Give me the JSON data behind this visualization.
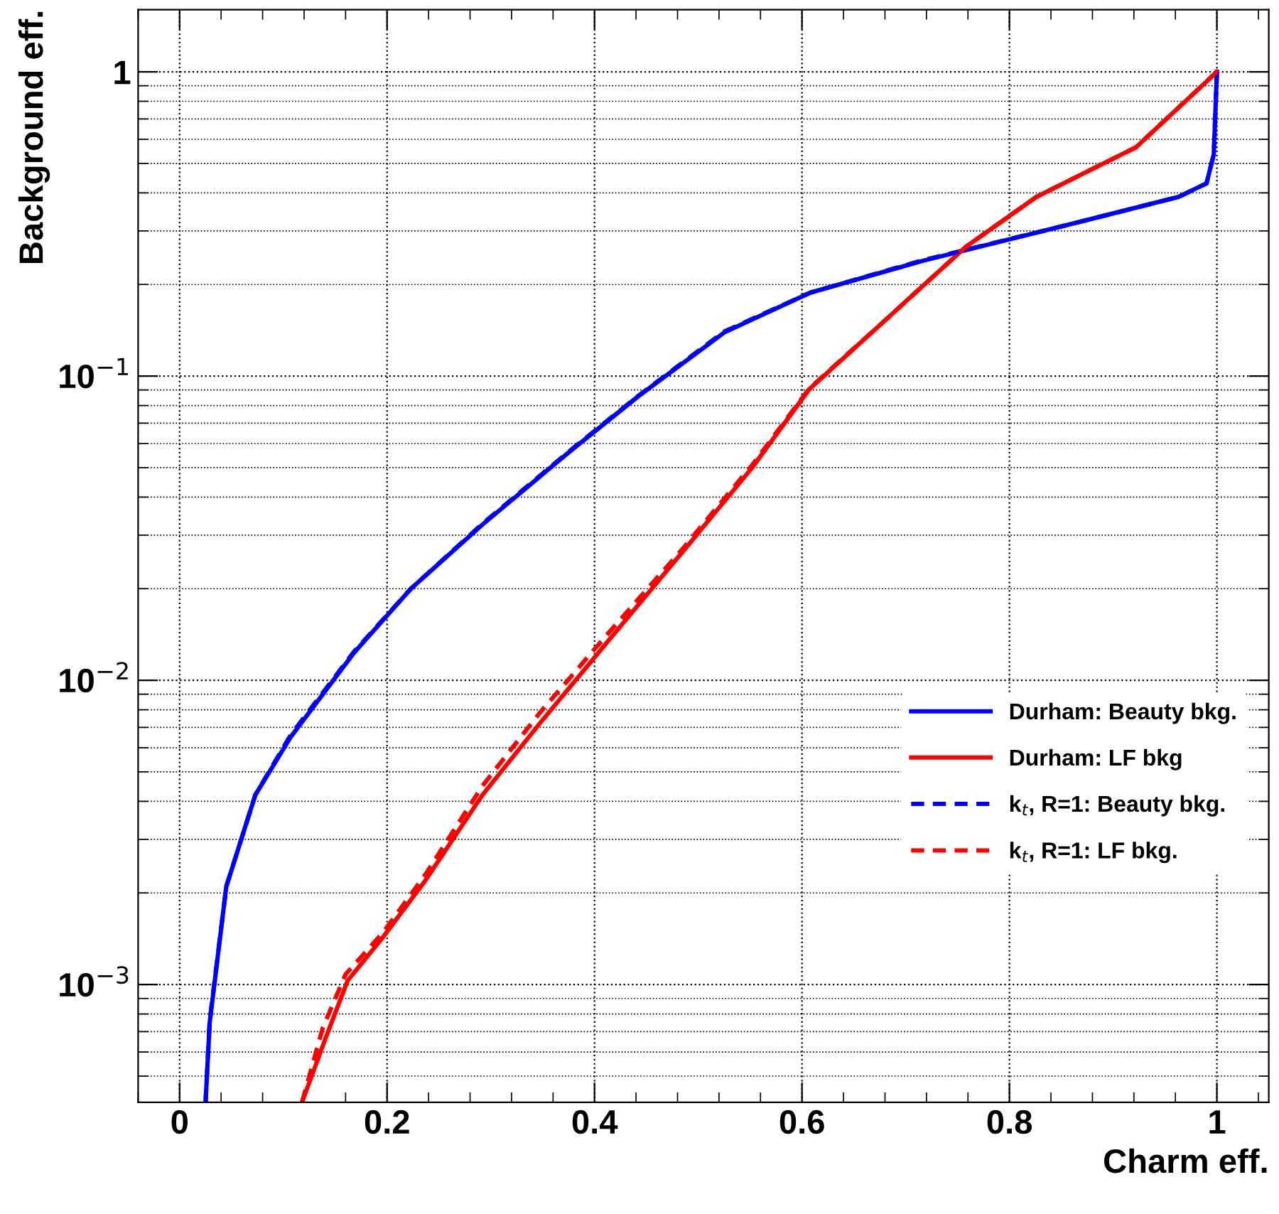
{
  "chart_data": {
    "type": "line",
    "xlabel": "Charm eff.",
    "ylabel": "Background eff.",
    "log": "y",
    "grid": true,
    "legend": "bottom right",
    "xlim": [
      -0.04,
      1.05
    ],
    "ylim": [
      0.00041,
      1.6
    ],
    "xticks": [
      0,
      0.2,
      0.4,
      0.6,
      0.8,
      1
    ],
    "yticks": [
      {
        "value": 0.001,
        "label": "10$^{−3}$"
      },
      {
        "value": 0.01,
        "label": "10$^{−2}$"
      },
      {
        "value": 0.1,
        "label": "10$^{−1}$"
      },
      1
    ],
    "series": [
      {
        "name": "Durham: Beauty bkg.",
        "color": "#0000ff",
        "line_style": "solid",
        "x": [
          0.025,
          0.029,
          0.045,
          0.073,
          0.107,
          0.168,
          0.223,
          0.292,
          0.374,
          0.442,
          0.525,
          0.608,
          0.716,
          0.853,
          0.963,
          0.99,
          0.997,
          1.0
        ],
        "values": [
          0.00041,
          0.00075,
          0.0021,
          0.0042,
          0.0065,
          0.0123,
          0.02,
          0.0325,
          0.0557,
          0.0857,
          0.139,
          0.188,
          0.239,
          0.312,
          0.388,
          0.43,
          0.535,
          1.0
        ]
      },
      {
        "name": "Durham: LF bkg",
        "color": "#ff0000",
        "line_style": "solid",
        "x": [
          0.118,
          0.141,
          0.162,
          0.196,
          0.237,
          0.292,
          0.347,
          0.415,
          0.484,
          0.552,
          0.607,
          0.675,
          0.758,
          0.826,
          0.922,
          1.0
        ],
        "values": [
          0.00041,
          0.00067,
          0.00103,
          0.00143,
          0.0022,
          0.0042,
          0.0072,
          0.0137,
          0.0262,
          0.05,
          0.0905,
          0.147,
          0.266,
          0.388,
          0.565,
          1.0
        ]
      },
      {
        "name": "k$_{t}$, R=1: Beauty bkg.",
        "color": "#0000ff",
        "line_style": "dashed",
        "x": [
          0.025,
          0.029,
          0.045,
          0.073,
          0.107,
          0.168,
          0.223,
          0.292,
          0.374,
          0.442,
          0.525,
          0.608,
          0.716,
          0.853,
          0.963,
          0.99,
          0.997,
          1.0
        ],
        "values": [
          0.00041,
          0.00076,
          0.0021,
          0.0042,
          0.0066,
          0.0124,
          0.02,
          0.0327,
          0.056,
          0.086,
          0.14,
          0.188,
          0.24,
          0.312,
          0.388,
          0.43,
          0.535,
          1.0
        ]
      },
      {
        "name": "k$_{t}$, R=1: LF bkg.",
        "color": "#ff0000",
        "line_style": "dashed",
        "x": [
          0.118,
          0.138,
          0.16,
          0.196,
          0.237,
          0.292,
          0.347,
          0.415,
          0.484,
          0.552,
          0.607,
          0.675,
          0.758,
          0.826,
          0.922,
          1.0
        ],
        "values": [
          0.00041,
          0.00072,
          0.00108,
          0.00148,
          0.0023,
          0.0045,
          0.0078,
          0.0145,
          0.0268,
          0.051,
          0.091,
          0.147,
          0.266,
          0.388,
          0.565,
          1.0
        ]
      }
    ]
  }
}
